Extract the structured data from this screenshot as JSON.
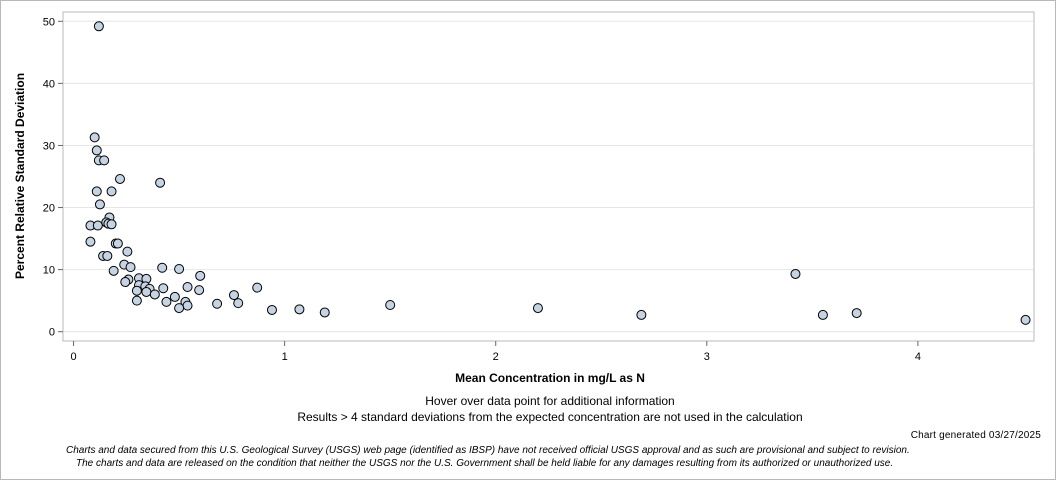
{
  "chart_data": {
    "type": "scatter",
    "xlabel": "Mean Concentration in mg/L as N",
    "ylabel": "Percent Relative Standard Deviation",
    "xlim": [
      -0.05,
      4.55
    ],
    "ylim": [
      -1.5,
      51.5
    ],
    "x_ticks": [
      0,
      1,
      2,
      3,
      4
    ],
    "y_ticks": [
      0,
      10,
      20,
      30,
      40,
      50
    ],
    "grid": "horizontal",
    "marker_fill": "#c5d3e3",
    "marker_stroke": "#000000",
    "grid_color": "#e6e6e6",
    "points": [
      {
        "x": 0.12,
        "y": 49.2
      },
      {
        "x": 0.1,
        "y": 31.3
      },
      {
        "x": 0.11,
        "y": 29.2
      },
      {
        "x": 0.12,
        "y": 27.6
      },
      {
        "x": 0.145,
        "y": 27.6
      },
      {
        "x": 0.22,
        "y": 24.6
      },
      {
        "x": 0.41,
        "y": 24.0
      },
      {
        "x": 0.11,
        "y": 22.6
      },
      {
        "x": 0.18,
        "y": 22.6
      },
      {
        "x": 0.125,
        "y": 20.5
      },
      {
        "x": 0.17,
        "y": 18.4
      },
      {
        "x": 0.155,
        "y": 17.6
      },
      {
        "x": 0.165,
        "y": 17.4
      },
      {
        "x": 0.18,
        "y": 17.3
      },
      {
        "x": 0.08,
        "y": 17.1
      },
      {
        "x": 0.115,
        "y": 17.1
      },
      {
        "x": 0.08,
        "y": 14.5
      },
      {
        "x": 0.2,
        "y": 14.2
      },
      {
        "x": 0.21,
        "y": 14.2
      },
      {
        "x": 0.255,
        "y": 12.9
      },
      {
        "x": 0.14,
        "y": 12.2
      },
      {
        "x": 0.16,
        "y": 12.2
      },
      {
        "x": 0.24,
        "y": 10.8
      },
      {
        "x": 0.27,
        "y": 10.4
      },
      {
        "x": 0.42,
        "y": 10.3
      },
      {
        "x": 0.5,
        "y": 10.1
      },
      {
        "x": 0.19,
        "y": 9.8
      },
      {
        "x": 0.6,
        "y": 9.0
      },
      {
        "x": 3.42,
        "y": 9.3
      },
      {
        "x": 0.31,
        "y": 8.6
      },
      {
        "x": 0.345,
        "y": 8.5
      },
      {
        "x": 0.26,
        "y": 8.4
      },
      {
        "x": 0.245,
        "y": 8.0
      },
      {
        "x": 0.31,
        "y": 7.5
      },
      {
        "x": 0.34,
        "y": 7.3
      },
      {
        "x": 0.54,
        "y": 7.2
      },
      {
        "x": 0.87,
        "y": 7.1
      },
      {
        "x": 0.425,
        "y": 7.0
      },
      {
        "x": 0.36,
        "y": 6.9
      },
      {
        "x": 0.3,
        "y": 6.6
      },
      {
        "x": 0.595,
        "y": 6.7
      },
      {
        "x": 0.345,
        "y": 6.4
      },
      {
        "x": 0.385,
        "y": 6.0
      },
      {
        "x": 0.76,
        "y": 5.9
      },
      {
        "x": 0.48,
        "y": 5.6
      },
      {
        "x": 0.3,
        "y": 5.0
      },
      {
        "x": 0.44,
        "y": 4.8
      },
      {
        "x": 0.53,
        "y": 4.8
      },
      {
        "x": 0.78,
        "y": 4.6
      },
      {
        "x": 0.68,
        "y": 4.5
      },
      {
        "x": 1.5,
        "y": 4.3
      },
      {
        "x": 0.54,
        "y": 4.2
      },
      {
        "x": 0.5,
        "y": 3.8
      },
      {
        "x": 2.2,
        "y": 3.8
      },
      {
        "x": 1.07,
        "y": 3.6
      },
      {
        "x": 0.94,
        "y": 3.5
      },
      {
        "x": 1.19,
        "y": 3.1
      },
      {
        "x": 3.71,
        "y": 3.0
      },
      {
        "x": 2.69,
        "y": 2.7
      },
      {
        "x": 3.55,
        "y": 2.7
      },
      {
        "x": 4.51,
        "y": 1.9
      }
    ]
  },
  "notes": {
    "hover": "Hover over data point for additional information",
    "exclusion": "Results > 4 standard deviations from the expected concentration are not used in the calculation",
    "generated": "Chart generated 03/27/2025",
    "disclaimer_line1": "Charts and data secured from this U.S. Geological Survey (USGS) web page (identified as IBSP) have not received official USGS approval and as such are provisional and subject to revision.",
    "disclaimer_line2": "The charts and data are released on the condition that neither the USGS nor the U.S. Government shall be held liable for any damages resulting from its authorized or unauthorized use."
  }
}
